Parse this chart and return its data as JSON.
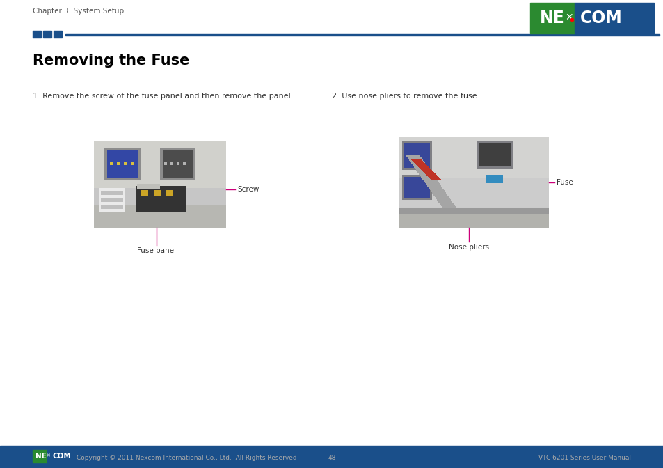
{
  "page_bg": "#ffffff",
  "header_text": "Chapter 3: System Setup",
  "header_text_color": "#555555",
  "header_text_size": 7.5,
  "top_bar_color": "#1a4f8a",
  "accent_color": "#1a4f8a",
  "title": "Removing the Fuse",
  "title_size": 15,
  "step1_text": "1. Remove the screw of the fuse panel and then remove the panel.",
  "step2_text": "2. Use nose pliers to remove the fuse.",
  "step_text_size": 8,
  "step_text_color": "#333333",
  "label_screw": "Screw",
  "label_fuse_panel": "Fuse panel",
  "label_fuse": "Fuse",
  "label_nose_pliers": "Nose pliers",
  "label_color": "#333333",
  "label_size": 7.5,
  "arrow_color": "#cc007a",
  "line_color": "#cc007a",
  "footer_bar_color": "#1a4f8a",
  "footer_text_left": "Copyright © 2011 Nexcom International Co., Ltd.  All Rights Reserved",
  "footer_text_center": "48",
  "footer_text_right": "VTC 6201 Series User Manual",
  "footer_text_color": "#aaaaaa",
  "footer_text_size": 6.5
}
